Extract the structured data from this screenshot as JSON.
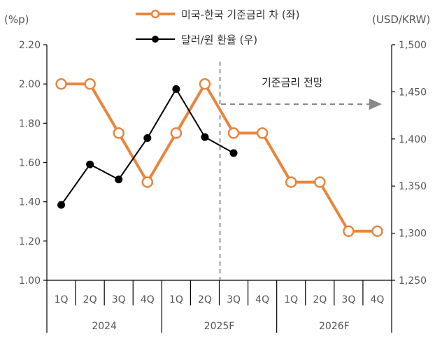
{
  "chart_data": {
    "type": "line",
    "title": "",
    "y_left_label": "(%p)",
    "y_right_label": "(USD/KRW)",
    "y_left_ticks": [
      "2.20",
      "2.00",
      "1.80",
      "1.60",
      "1.40",
      "1.20",
      "1.00"
    ],
    "y_right_ticks": [
      "1,500",
      "1,450",
      "1,400",
      "1,350",
      "1,300",
      "1,250"
    ],
    "ylim_left": [
      1.0,
      2.2
    ],
    "ylim_right": [
      1250,
      1500
    ],
    "categories": [
      "1Q",
      "2Q",
      "3Q",
      "4Q",
      "1Q",
      "2Q",
      "3Q",
      "4Q",
      "1Q",
      "2Q",
      "3Q",
      "4Q"
    ],
    "years": [
      "2024",
      "2025F",
      "2026F"
    ],
    "series": [
      {
        "name": "미국-한국 기준금리 차 (좌)",
        "axis": "left",
        "color": "#E8853D",
        "marker": "open-circle",
        "values": [
          2.0,
          2.0,
          1.75,
          1.5,
          1.75,
          2.0,
          1.75,
          1.75,
          1.5,
          1.5,
          1.25,
          1.25
        ]
      },
      {
        "name": "달러/원 환율 (우)",
        "axis": "right",
        "color": "#000000",
        "marker": "filled-circle",
        "values": [
          1330,
          1373,
          1357,
          1401,
          1453,
          1402,
          1385,
          null,
          null,
          null,
          null,
          null
        ]
      }
    ],
    "annotation": "기준금리 전망",
    "forecast_divider_after_index": 5
  }
}
